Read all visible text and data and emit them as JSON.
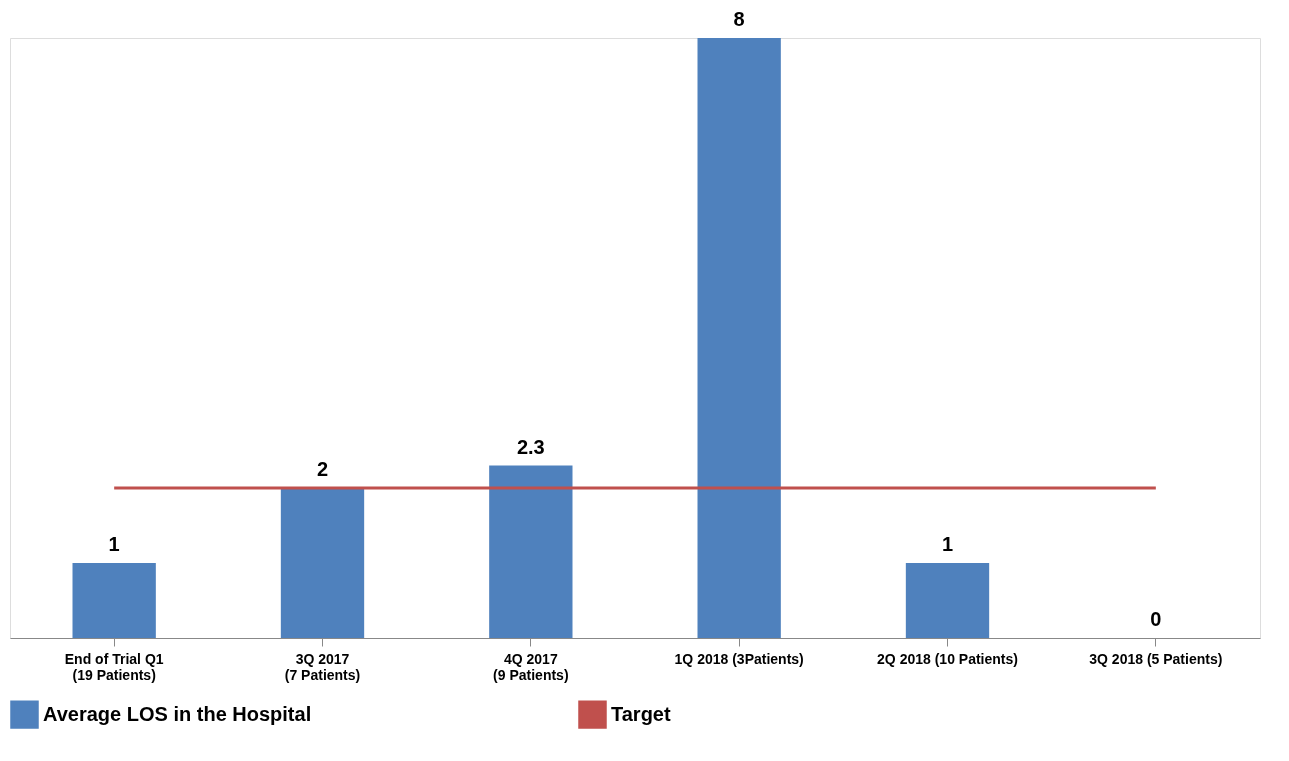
{
  "chart_data": {
    "type": "bar",
    "categories": [
      "End of Trial Q1\n(19 Patients)",
      "3Q 2017\n(7 Patients)",
      "4Q 2017\n(9 Patients)",
      "1Q 2018 (3Patients)",
      "2Q 2018 (10 Patients)",
      "3Q 2018 (5 Patients)"
    ],
    "series": [
      {
        "name": "Average LOS in the Hospital",
        "color": "#4f81bd",
        "values": [
          1,
          2,
          2.3,
          8,
          1,
          0
        ],
        "value_labels": [
          "1",
          "2",
          "2.3",
          "8",
          "1",
          "0"
        ]
      },
      {
        "name": "Target",
        "type": "line",
        "color": "#c0504d",
        "values": [
          2,
          2,
          2,
          2,
          2,
          2
        ]
      }
    ],
    "tick_labels": "x",
    "grid": false,
    "legend": "bottom"
  }
}
